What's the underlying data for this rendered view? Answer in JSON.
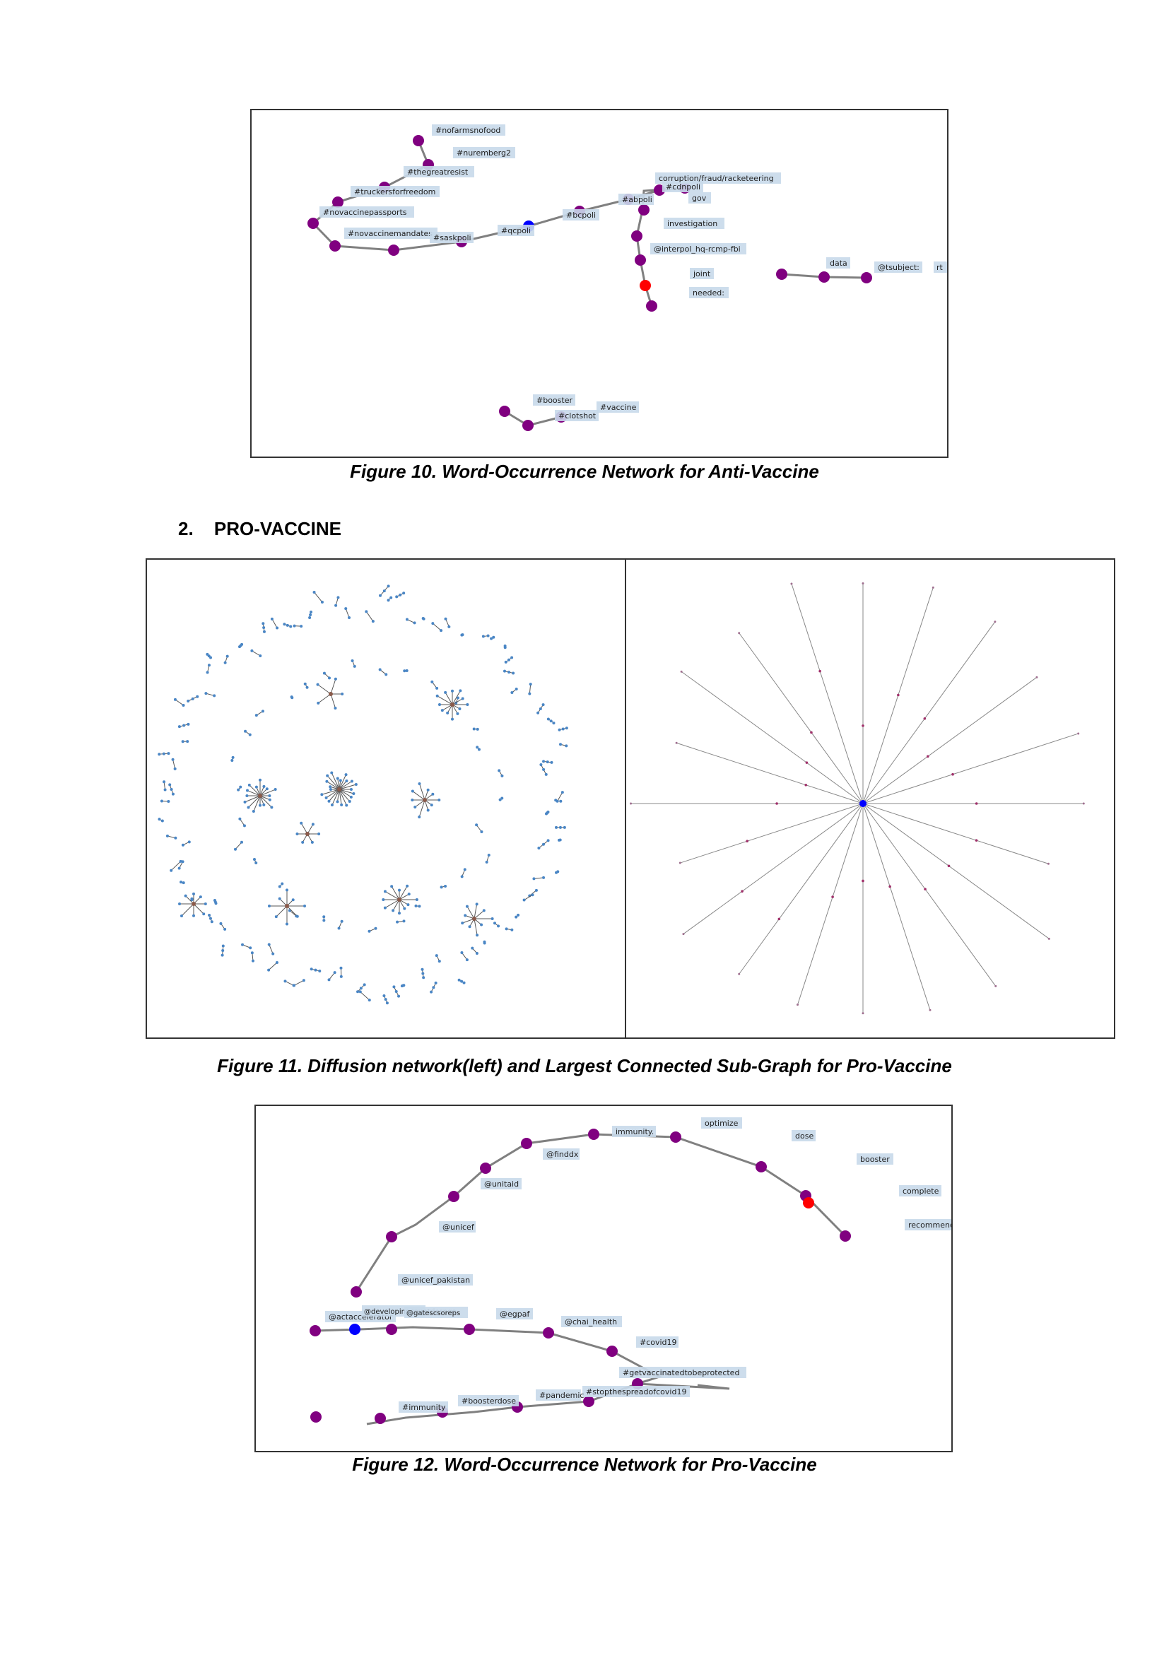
{
  "fig10": {
    "caption": "Figure 10. Word-Occurrence Network for Anti-Vaccine",
    "labels": {
      "n1": "#nofarmsnofood",
      "n2": "#nuremberg2",
      "n3": "#thegreatresist",
      "n4": "#truckersforfreedom",
      "n5": "#novaccinepassports",
      "n6": "#novaccinemandates",
      "n7": "#saskpoli",
      "n8": "#qcpoli",
      "n9": "#bcpoli",
      "n10": "#abpoli",
      "n11": "#cdnpoli",
      "n12": "corruption/fraud/racketeering",
      "n13": "gov",
      "n14": "investigation",
      "n15": "@interpol_hq-rcmp-fbi",
      "n16": "joint",
      "n17": "needed:",
      "d1": "data",
      "d2": "@tsubject:",
      "d3": "rt",
      "b1": "#booster",
      "b2": "#clotshot",
      "b3": "#vaccine"
    }
  },
  "section": {
    "number": "2.",
    "title": "PRO-VACCINE"
  },
  "fig11": {
    "caption": "Figure 11. Diffusion network(left) and Largest Connected Sub-Graph for Pro-Vaccine"
  },
  "fig12": {
    "caption": "Figure 12. Word-Occurrence Network for Pro-Vaccine",
    "labels": {
      "p1": "immunity.",
      "p2": "optimize",
      "p3": "dose",
      "p4": "booster",
      "p5": "complete",
      "p6": "recommend",
      "p7": "@finddx",
      "p8": "@unitaid",
      "p9": "@unicef",
      "p10": "@unicef_pakistan",
      "p11": "@actaccelerator",
      "p12": "@developingcountriesngo",
      "p13": "@gatescsoreps",
      "p14": "@egpaf",
      "p15": "@chai_health",
      "p16": "#covid19",
      "p17": "#getvaccinatedtobeprotected",
      "p18": "#stopthespreadofcovid19",
      "p19": "#pandemic",
      "p20": "#boosterdose",
      "p21": "#immunity"
    }
  },
  "colors": {
    "node": "#800080",
    "source": "#0000ff",
    "target": "#ff0000",
    "edge": "#808080",
    "label_bg": "#c8d9ea",
    "diffusion": "#4a86c5"
  }
}
